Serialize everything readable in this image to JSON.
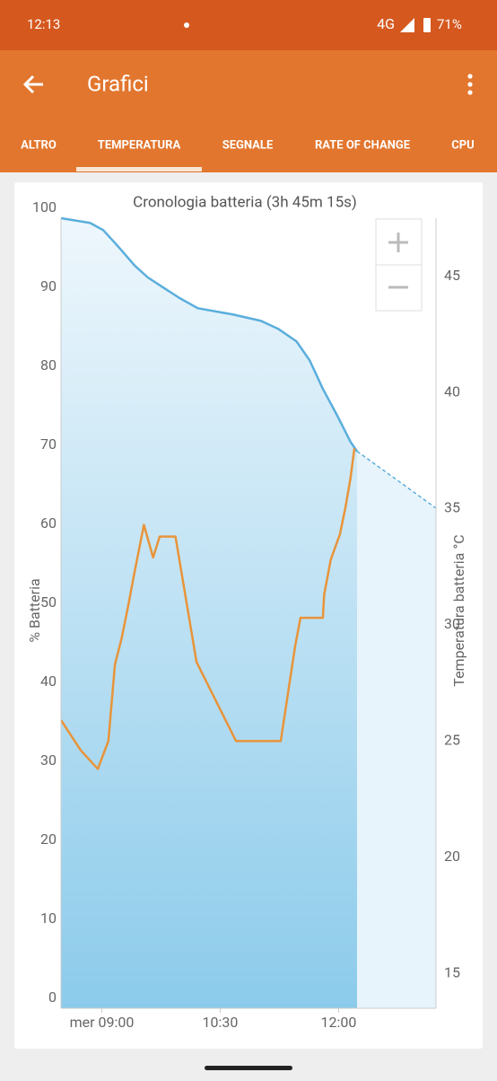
{
  "status_bar": {
    "time": "12:13",
    "network": "4G",
    "battery": "71%"
  },
  "app_bar": {
    "title": "Grafici"
  },
  "tabs": {
    "items": [
      "ALTRO",
      "TEMPERATURA",
      "SEGNALE",
      "RATE OF CHANGE",
      "CPU"
    ],
    "selected": 1
  },
  "chart_data": {
    "type": "line",
    "title": "Cronologia batteria (3h 45m 15s)",
    "y_label": "% Batteria",
    "y2_label": "Temperatura batteria °C",
    "xlim": [
      "08:29",
      "13:14"
    ],
    "xticks": [
      {
        "value": "09:00",
        "label": "mer 09:00"
      },
      "10:30",
      "12:00"
    ],
    "ylim": [
      0,
      100
    ],
    "yticks": [
      0,
      10,
      20,
      30,
      40,
      50,
      60,
      70,
      80,
      90,
      100
    ],
    "y2lim": [
      13.5,
      47.5
    ],
    "y2ticks": [
      15,
      20,
      25,
      30,
      35,
      40,
      45
    ],
    "series": [
      {
        "color": "#5aaedc",
        "x": [
          "08:29",
          "08:51",
          "09:01",
          "09:12",
          "09:25",
          "09:35",
          "09:46",
          "09:59",
          "10:13",
          "10:40",
          "11:01",
          "11:14",
          "11:28",
          "11:38",
          "11:48",
          "11:59",
          "12:09",
          "12:14"
        ],
        "values": [
          100,
          99.4,
          98.5,
          96.5,
          94,
          92.5,
          91.3,
          89.9,
          88.6,
          87.8,
          87,
          86,
          84.4,
          82,
          78.4,
          75,
          71.7,
          70.5
        ],
        "projection": {
          "x": [
            "12:14",
            "13:14"
          ],
          "values": [
            70.5,
            63.3
          ]
        }
      },
      {
        "color": "#e8943a",
        "axis": "y2",
        "x": [
          "08:29",
          "08:44",
          "08:57",
          "09:05",
          "09:10",
          "09:15",
          "09:20",
          "09:25",
          "09:32",
          "09:39",
          "09:44",
          "09:56",
          "10:12",
          "10:42",
          "11:16",
          "11:27",
          "11:31",
          "11:48",
          "11:49",
          "11:54",
          "12:01",
          "12:05",
          "12:09",
          "12:12"
        ],
        "values": [
          25.9,
          24.6,
          23.8,
          25,
          28.3,
          29.4,
          30.8,
          32.3,
          34.3,
          32.9,
          33.8,
          33.8,
          28.4,
          25,
          25,
          29.1,
          30.3,
          30.3,
          31.3,
          32.8,
          33.9,
          35,
          36.3,
          37.6
        ]
      }
    ]
  }
}
